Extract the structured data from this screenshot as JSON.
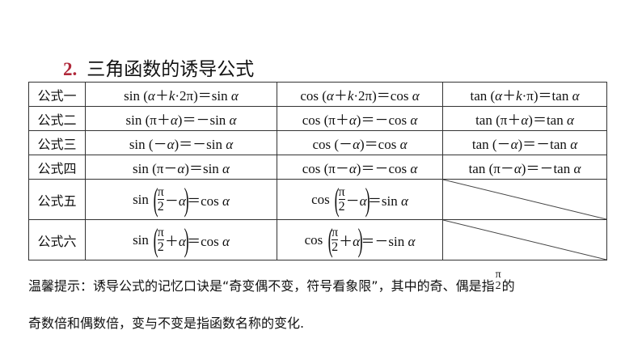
{
  "heading": {
    "number": "2.",
    "text": "三角函数的诱导公式"
  },
  "rows": [
    {
      "label": "公式一",
      "cells": [
        "sin (α＋k·2π)＝sin α",
        "cos (α＋k·2π)＝cos α",
        "tan (α＋k·π)＝tan α"
      ]
    },
    {
      "label": "公式二",
      "cells": [
        "sin (π＋α)＝－sin α",
        "cos (π＋α)＝－cos α",
        "tan (π＋α)＝tan α"
      ]
    },
    {
      "label": "公式三",
      "cells": [
        "sin (－α)＝－sin α",
        "cos (－α)＝cos α",
        "tan (－α)＝－tan α"
      ]
    },
    {
      "label": "公式四",
      "cells": [
        "sin (π－α)＝sin α",
        "cos (π－α)＝－cos α",
        "tan (π－α)＝－tan α"
      ]
    }
  ],
  "frac_rows": [
    {
      "label": "公式五",
      "cells": [
        {
          "fn": "sin",
          "num": "π",
          "den": "2",
          "op": "－α",
          "rhs": "＝cos α"
        },
        {
          "fn": "cos",
          "num": "π",
          "den": "2",
          "op": "－α",
          "rhs": "＝sin α"
        }
      ]
    },
    {
      "label": "公式六",
      "cells": [
        {
          "fn": "sin",
          "num": "π",
          "den": "2",
          "op": "＋α",
          "rhs": "＝cos α"
        },
        {
          "fn": "cos",
          "num": "π",
          "den": "2",
          "op": "＋α",
          "rhs": "＝－sin α"
        }
      ]
    }
  ],
  "note": {
    "line1_a": "温馨提示：诱导公式的记忆口诀是“奇变偶不变，符号看象限”，其中的奇、偶是指",
    "frac_num": "π",
    "frac_den": "2",
    "line1_b": "的",
    "line2": "奇数倍和偶数倍，变与不变是指函数名称的变化."
  },
  "colors": {
    "heading_number": "#b0283a"
  }
}
